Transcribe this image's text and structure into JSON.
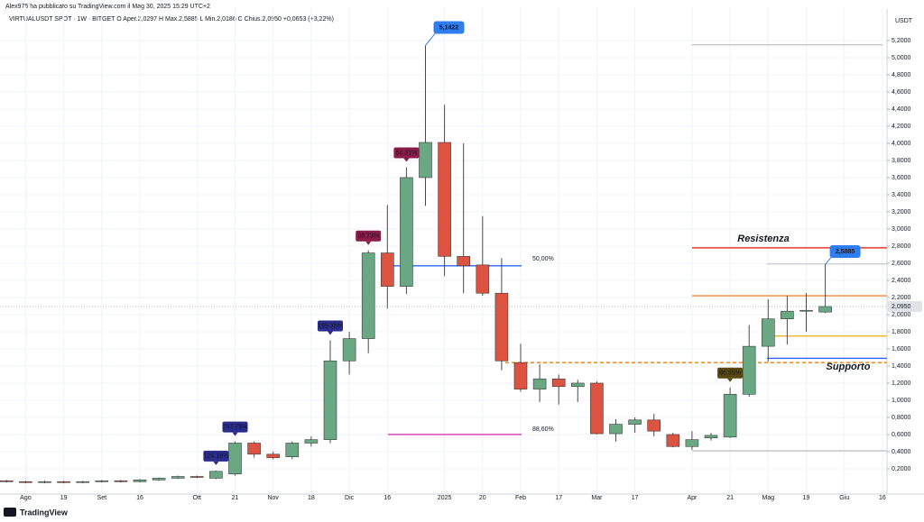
{
  "header": {
    "author": "Alex975 ha pubblicato su TradingView.com il Mag 30, 2025 15:29 UTC+2",
    "legend": "VIRTUALUSDT SPOT · 1W · BITGET  O Aper.2,0297  H Max.2,5885  L Min.2,0186  C Chius.2,0950  +0,0653 (+3,22%)"
  },
  "footer": {
    "brand": "TradingView"
  },
  "chart_data": {
    "type": "candlestick",
    "currency": "USDT",
    "up_color": "#6aa884",
    "down_color": "#dc5341",
    "grid": true,
    "categories": [
      null,
      "Ago",
      null,
      "19",
      null,
      "Set",
      null,
      "16",
      null,
      null,
      "Ott",
      null,
      "21",
      null,
      "Nov",
      null,
      "18",
      null,
      "Dic",
      null,
      "16",
      null,
      null,
      "2025",
      null,
      "20",
      null,
      "Feb",
      null,
      "17",
      null,
      "Mar",
      null,
      "17",
      null,
      null,
      "Apr",
      null,
      "21",
      null,
      "Mag",
      null,
      "19",
      null,
      "Giu",
      null,
      "16"
    ],
    "open": [
      0.06,
      0.05,
      0.04,
      0.05,
      0.04,
      0.05,
      0.06,
      0.05,
      0.07,
      0.09,
      0.11,
      0.09,
      0.14,
      0.5,
      0.37,
      0.34,
      0.5,
      0.54,
      1.46,
      1.72,
      2.72,
      2.33,
      3.6,
      4.01,
      2.68,
      2.58,
      2.25,
      1.44,
      1.13,
      1.25,
      1.16,
      1.2,
      0.61,
      0.72,
      0.77,
      0.6,
      0.46,
      0.56,
      0.57,
      1.07,
      1.63,
      1.95,
      2.04,
      2.0297,
      null,
      null,
      null
    ],
    "high": [
      0.07,
      0.06,
      0.06,
      0.06,
      0.06,
      0.07,
      0.07,
      0.08,
      0.1,
      0.12,
      0.12,
      0.18,
      0.52,
      0.52,
      0.4,
      0.52,
      0.58,
      1.7,
      1.8,
      2.75,
      3.28,
      3.72,
      5.1422,
      4.45,
      4.0,
      3.15,
      2.66,
      1.66,
      1.42,
      1.3,
      1.24,
      1.22,
      0.78,
      0.8,
      0.84,
      0.62,
      0.64,
      0.62,
      1.15,
      1.88,
      2.18,
      2.22,
      2.25,
      2.5885,
      null,
      null,
      null
    ],
    "low": [
      0.04,
      0.03,
      0.03,
      0.03,
      0.03,
      0.04,
      0.04,
      0.04,
      0.06,
      0.08,
      0.09,
      0.08,
      0.12,
      0.33,
      0.31,
      0.31,
      0.46,
      0.5,
      1.3,
      1.55,
      2.07,
      2.24,
      3.27,
      2.45,
      2.25,
      2.22,
      1.35,
      1.1,
      0.98,
      0.95,
      0.98,
      0.6,
      0.52,
      0.62,
      0.58,
      0.45,
      0.42,
      0.53,
      0.56,
      1.04,
      1.45,
      1.65,
      1.8,
      2.0186,
      null,
      null,
      null
    ],
    "close": [
      0.05,
      0.04,
      0.05,
      0.04,
      0.05,
      0.06,
      0.05,
      0.07,
      0.09,
      0.11,
      0.1,
      0.17,
      0.5,
      0.37,
      0.33,
      0.5,
      0.54,
      1.46,
      1.72,
      2.72,
      2.33,
      3.6,
      4.01,
      2.68,
      2.57,
      2.25,
      1.46,
      1.13,
      1.25,
      1.16,
      1.2,
      0.61,
      0.72,
      0.77,
      0.64,
      0.46,
      0.54,
      0.59,
      1.07,
      1.63,
      1.95,
      2.04,
      2.05,
      2.095,
      null,
      null,
      null
    ],
    "ylim": [
      -0.095,
      5.589
    ],
    "yticks": [
      {
        "value": 0.2,
        "label": "0,2000"
      },
      {
        "value": 0.4,
        "label": "0,4000"
      },
      {
        "value": 0.6,
        "label": "0,6000"
      },
      {
        "value": 0.8,
        "label": "0,8000"
      },
      {
        "value": 1.0,
        "label": "1,0000"
      },
      {
        "value": 1.2,
        "label": "1,2000"
      },
      {
        "value": 1.4,
        "label": "1,4000"
      },
      {
        "value": 1.6,
        "label": "1,6000"
      },
      {
        "value": 1.8,
        "label": "1,8000"
      },
      {
        "value": 2.0,
        "label": "2,0000"
      },
      {
        "value": 2.2,
        "label": "2,2000"
      },
      {
        "value": 2.4,
        "label": "2,4000"
      },
      {
        "value": 2.6,
        "label": "2,6000"
      },
      {
        "value": 2.8,
        "label": "2,8000"
      },
      {
        "value": 3.0,
        "label": "3,0000"
      },
      {
        "value": 3.2,
        "label": "3,2000"
      },
      {
        "value": 3.4,
        "label": "3,4000"
      },
      {
        "value": 3.6,
        "label": "3,6000"
      },
      {
        "value": 3.8,
        "label": "3,8000"
      },
      {
        "value": 4.0,
        "label": "4,0000"
      },
      {
        "value": 4.2,
        "label": "4,2000"
      },
      {
        "value": 4.4,
        "label": "4,4000"
      },
      {
        "value": 4.6,
        "label": "4,6000"
      },
      {
        "value": 4.8,
        "label": "4,8000"
      },
      {
        "value": 5.0,
        "label": "5,0000"
      },
      {
        "value": 5.2,
        "label": "5,2000"
      }
    ],
    "last_price": {
      "value": 2.095,
      "label": "2,0950"
    },
    "callouts": [
      {
        "value": 5.1422,
        "label": "5,1422"
      },
      {
        "value": 2.5885,
        "label": "2,5885"
      }
    ],
    "badges": [
      {
        "label": "124.18%",
        "color": "#2b2d8c"
      },
      {
        "label": "257.75%",
        "color": "#2b2d8c"
      },
      {
        "label": "165.35%",
        "color": "#2b2d8c"
      },
      {
        "label": "58.73%",
        "color": "#8a1c48"
      },
      {
        "label": "54.31%",
        "color": "#8a1c48"
      },
      {
        "label": "86.55%",
        "color": "#5a4710"
      }
    ],
    "levels": [
      {
        "value": 2.57,
        "color": "#2962ff",
        "label": "50,00%"
      },
      {
        "value": 0.6,
        "color": "#d63ab0",
        "label": "88,60%"
      },
      {
        "value": 1.44,
        "color": "#f57c00"
      },
      {
        "value": 2.78,
        "color": "#e53935",
        "label": "Resistenza"
      },
      {
        "value": 2.22,
        "color": "#ef8a3a"
      },
      {
        "value": 1.75,
        "color": "#f0b429"
      },
      {
        "value": 1.49,
        "color": "#2962ff",
        "label": "Supporto"
      },
      {
        "value": 5.15,
        "color": "#b0b0b0"
      },
      {
        "value": 0.41,
        "color": "#b0b0b0"
      },
      {
        "value": 2.59,
        "color": "#c0c0c0"
      }
    ]
  }
}
